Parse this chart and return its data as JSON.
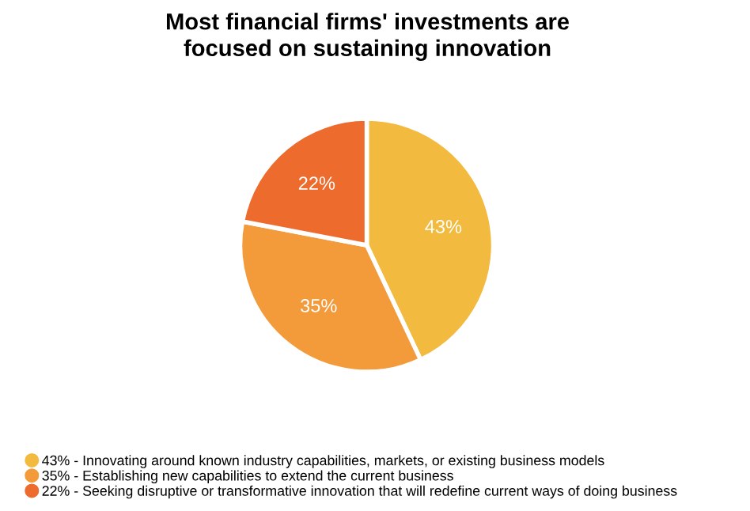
{
  "chart_data": {
    "type": "pie",
    "title": "Most financial firms' investments are\nfocused on sustaining innovation",
    "categories": [
      "43% - Innovating around known industry capabilities, markets, or existing business models",
      "35% - Establishing new capabilities to extend the current business",
      "22% - Seeking disruptive or transformative innovation that will redefine current ways of doing business"
    ],
    "values": [
      43,
      35,
      22
    ],
    "colors": [
      "#f2bb3f",
      "#f39b3a",
      "#ec6b2d"
    ],
    "value_labels": [
      "43%",
      "35%",
      "22%"
    ],
    "legend": "bottom"
  }
}
